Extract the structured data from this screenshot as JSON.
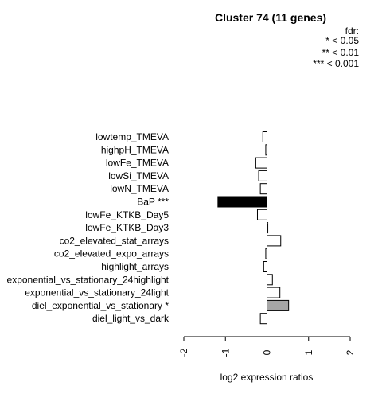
{
  "chart_data": {
    "type": "bar",
    "orientation": "horizontal",
    "title": "Cluster 74 (11 genes)",
    "xlabel": "log2 expression ratios",
    "ylabel": "",
    "xlim": [
      -2,
      2
    ],
    "xticks": [
      "-2",
      "-1",
      "0",
      "1",
      "2"
    ],
    "legend": {
      "placement": "top-right",
      "title": "fdr:",
      "entries": [
        "* < 0.05",
        "** < 0.01",
        "*** < 0.001"
      ]
    },
    "categories": [
      "lowtemp_TMEVA",
      "highpH_TMEVA",
      "lowFe_TMEVA",
      "lowSi_TMEVA",
      "lowN_TMEVA",
      "BaP ***",
      "lowFe_KTKB_Day5",
      "lowFe_KTKB_Day3",
      "co2_elevated_stat_arrays",
      "co2_elevated_expo_arrays",
      "highlight_arrays",
      "exponential_vs_stationary_24highlight",
      "exponential_vs_stationary_24light",
      "diel_exponential_vs_stationary *",
      "diel_light_vs_dark"
    ],
    "values": [
      -0.1,
      -0.03,
      -0.27,
      -0.2,
      -0.16,
      -1.18,
      -0.23,
      0.02,
      0.33,
      -0.03,
      -0.08,
      0.13,
      0.31,
      0.52,
      -0.16
    ],
    "significance": [
      "",
      "",
      "",
      "",
      "",
      "***",
      "",
      "",
      "",
      "",
      "",
      "",
      "",
      "*",
      ""
    ],
    "colors": {
      "none": "#ffffff",
      "*": "#a6a6a6",
      "**": "#595959",
      "***": "#000000",
      "stroke": "#000000"
    }
  }
}
